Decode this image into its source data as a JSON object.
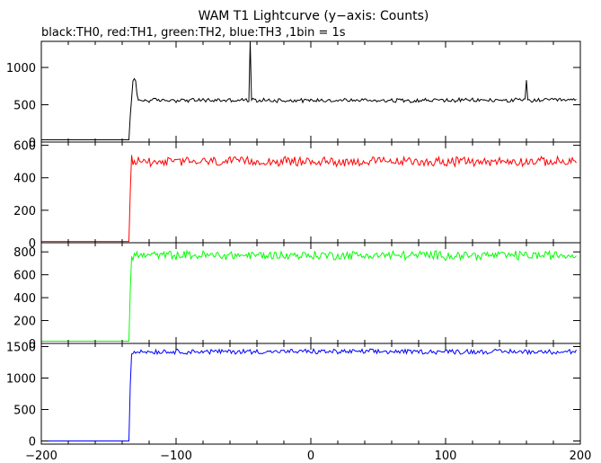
{
  "chart_data": {
    "type": "line",
    "title": "WAM T1 Lightcurve (y−axis: Counts)",
    "subtitle": "black:TH0, red:TH1, green:TH2, blue:TH3 ,1bin = 1s",
    "xlim": [
      -200,
      200
    ],
    "xticks": [
      -200,
      -100,
      0,
      100,
      200
    ],
    "xtick_labels": [
      "−200",
      "−100",
      "0",
      "100",
      "200"
    ],
    "panels": [
      {
        "name": "TH0",
        "color": "#000000",
        "ylim": [
          0,
          1350
        ],
        "yticks": [
          0,
          500,
          1000
        ],
        "ytick_labels": [
          "0",
          "500",
          "1000"
        ],
        "rise_x": -134,
        "pre_level": 30,
        "post_level": 560,
        "noise": 25,
        "features": [
          {
            "x": -134,
            "y": 350
          },
          {
            "x": -132,
            "y": 820
          },
          {
            "x": -131,
            "y": 850
          },
          {
            "x": -130,
            "y": 820
          },
          {
            "x": -129,
            "y": 640
          },
          {
            "x": -45,
            "y": 1350
          },
          {
            "x": 160,
            "y": 830
          }
        ]
      },
      {
        "name": "TH1",
        "color": "#ff0000",
        "ylim": [
          0,
          620
        ],
        "yticks": [
          0,
          200,
          400,
          600
        ],
        "ytick_labels": [
          "0",
          "200",
          "400",
          "600"
        ],
        "rise_x": -134,
        "pre_level": 8,
        "post_level": 500,
        "noise": 25,
        "features": [
          {
            "x": -134,
            "y": 310
          },
          {
            "x": -133,
            "y": 540
          }
        ]
      },
      {
        "name": "TH2",
        "color": "#00ff00",
        "ylim": [
          0,
          880
        ],
        "yticks": [
          0,
          200,
          400,
          600,
          800
        ],
        "ytick_labels": [
          "0",
          "200",
          "400",
          "600",
          "800"
        ],
        "rise_x": -134,
        "pre_level": 20,
        "post_level": 770,
        "noise": 35,
        "features": [
          {
            "x": -134,
            "y": 460
          },
          {
            "x": -133,
            "y": 760
          }
        ]
      },
      {
        "name": "TH3",
        "color": "#0000ff",
        "ylim": [
          -50,
          1550
        ],
        "yticks": [
          0,
          500,
          1000,
          1500
        ],
        "ytick_labels": [
          "0",
          "500",
          "1000",
          "1500"
        ],
        "rise_x": -134,
        "pre_level": 0,
        "post_level": 1420,
        "noise": 35,
        "features": [
          {
            "x": -134,
            "y": 880
          },
          {
            "x": -133,
            "y": 1380
          }
        ]
      }
    ]
  }
}
